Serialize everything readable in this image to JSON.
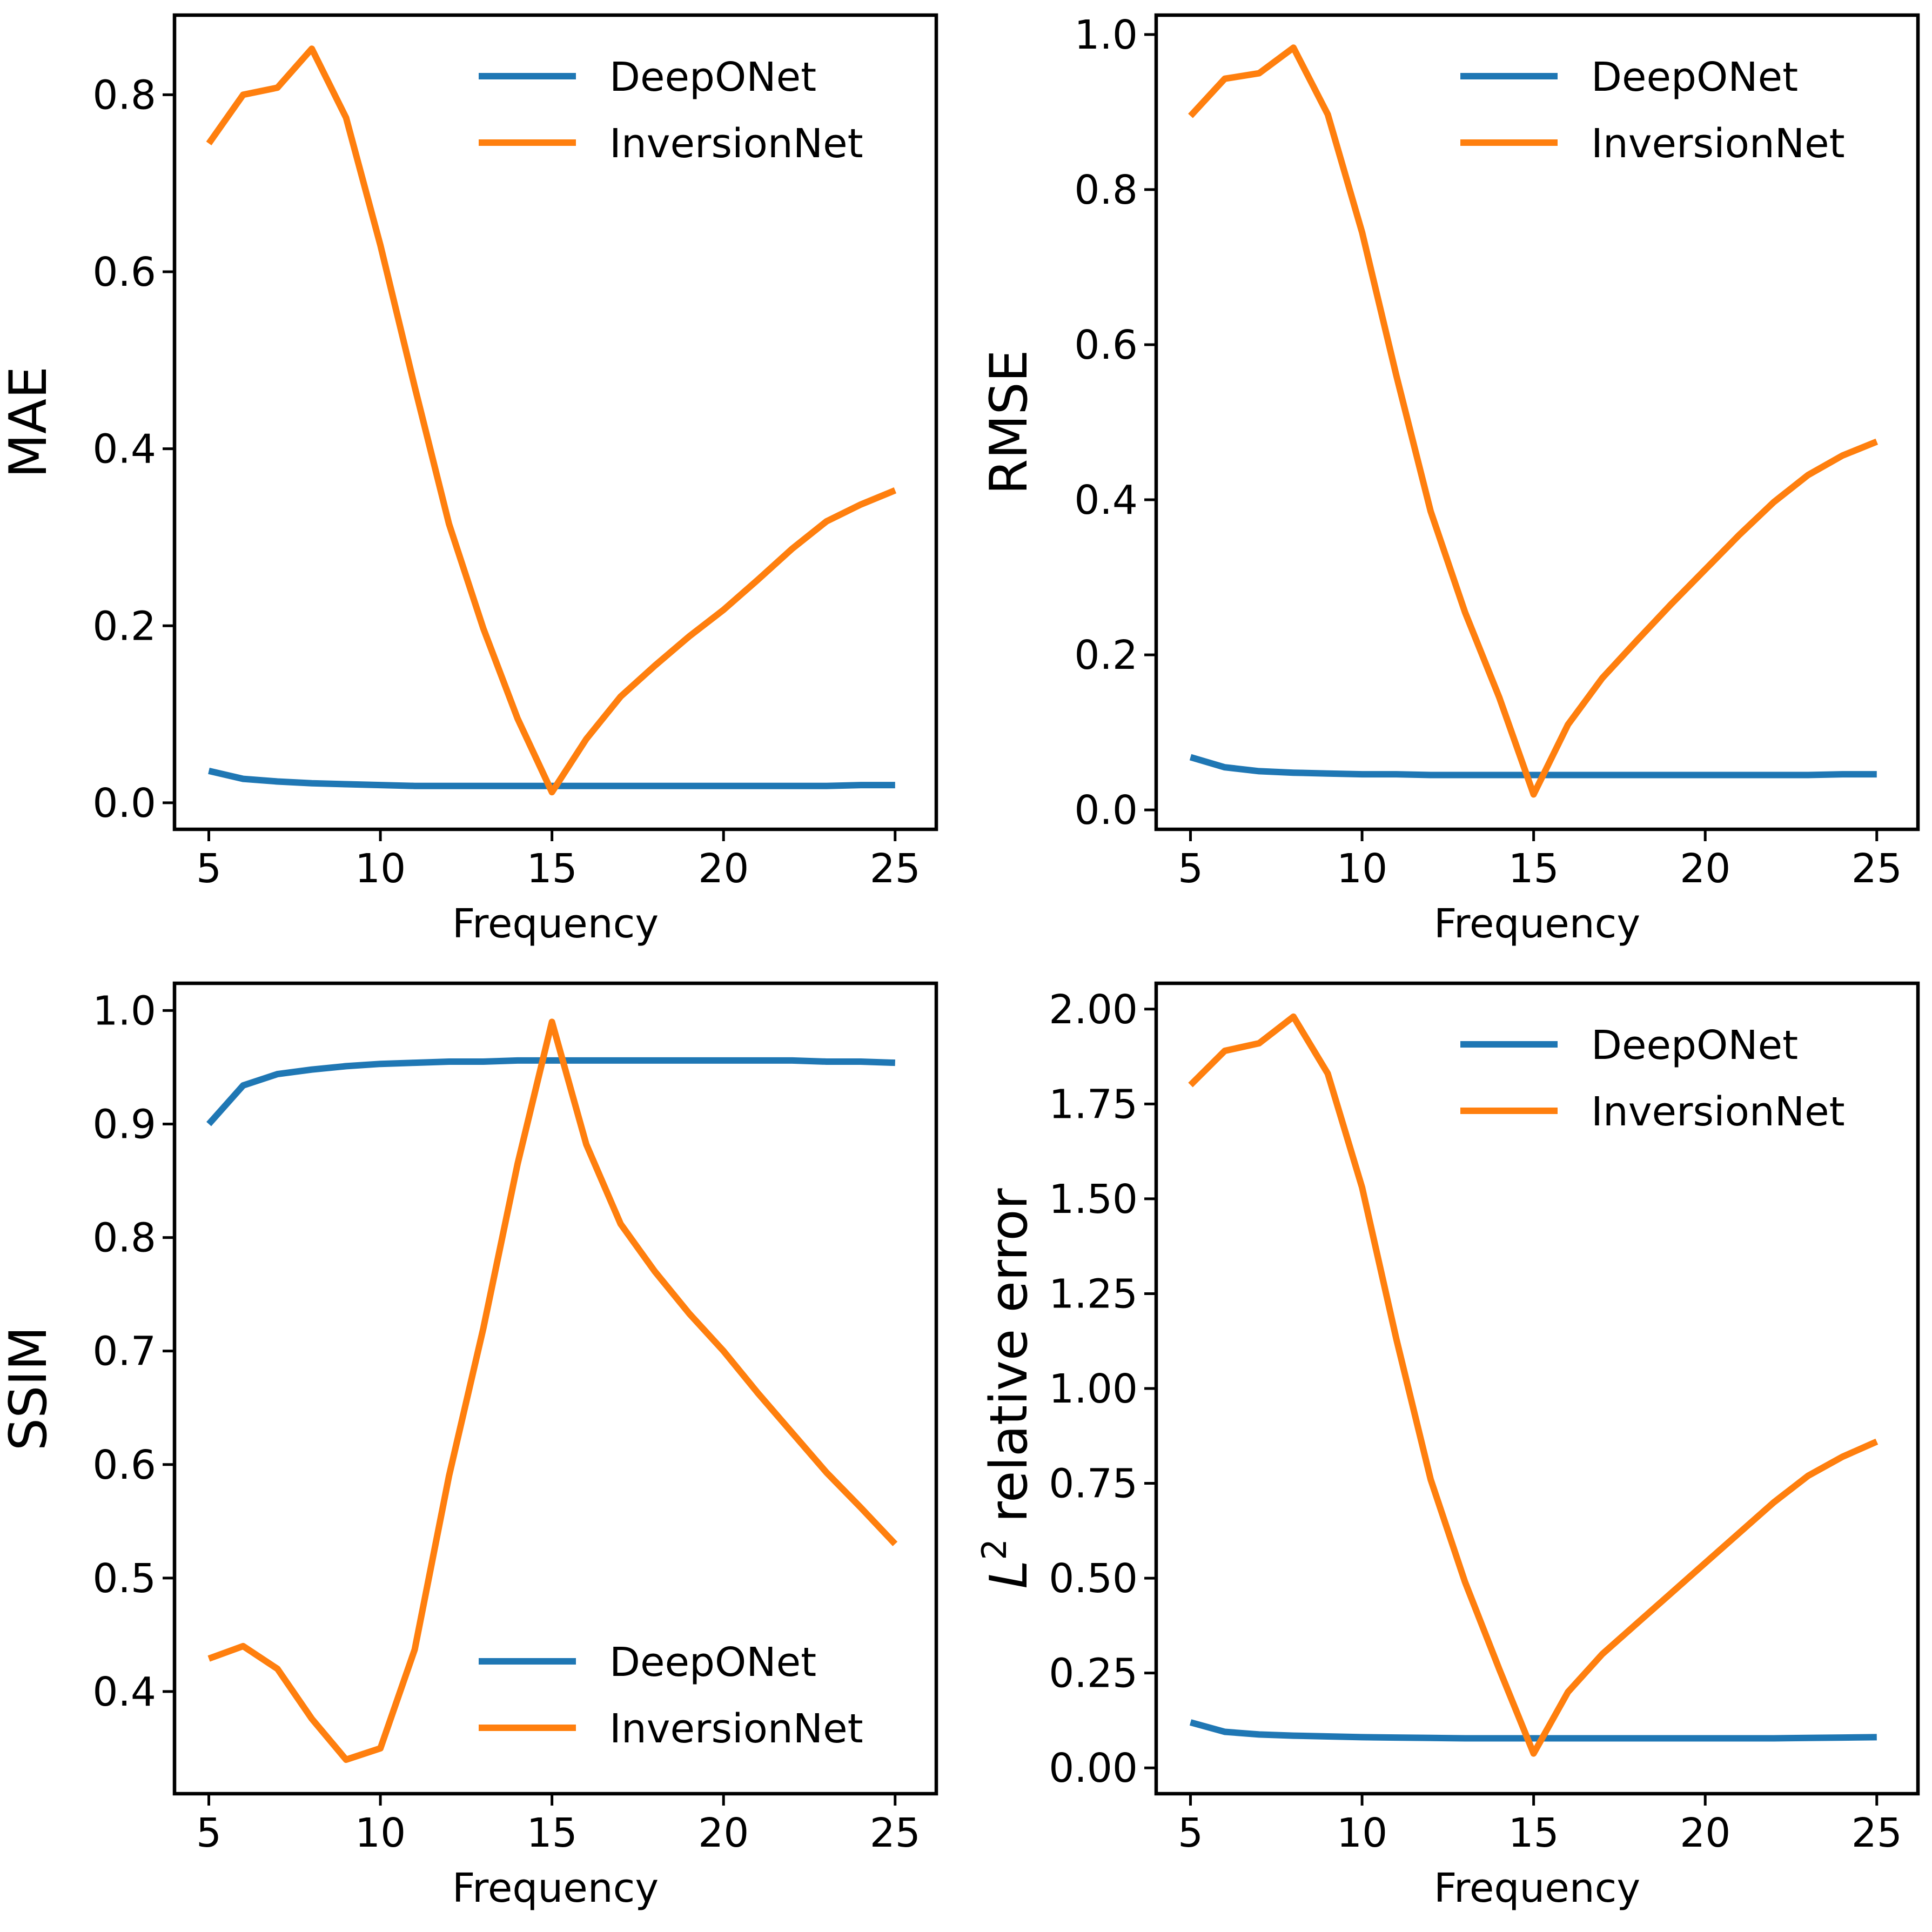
{
  "colors": {
    "deeponet": "#1f77b4",
    "inversionnet": "#ff7f0e"
  },
  "chart_data": [
    {
      "type": "line",
      "id": "mae",
      "xlabel": "Frequency",
      "ylabel": "MAE",
      "xlim": [
        4,
        26.2
      ],
      "ylim": [
        -0.03,
        0.89
      ],
      "xticks": [
        5,
        10,
        15,
        20,
        25
      ],
      "xtick_labels": [
        "5",
        "10",
        "15",
        "20",
        "25"
      ],
      "yticks": [
        0.0,
        0.2,
        0.4,
        0.6,
        0.8
      ],
      "ytick_labels": [
        "0.0",
        "0.2",
        "0.4",
        "0.6",
        "0.8"
      ],
      "legend_position": "upper-right",
      "x": [
        5,
        6,
        7,
        8,
        9,
        10,
        11,
        12,
        13,
        14,
        15,
        16,
        17,
        18,
        19,
        20,
        21,
        22,
        23,
        24,
        25
      ],
      "series": [
        {
          "name": "DeepONet",
          "color_key": "deeponet",
          "values": [
            0.036,
            0.027,
            0.024,
            0.022,
            0.021,
            0.02,
            0.019,
            0.019,
            0.019,
            0.019,
            0.019,
            0.019,
            0.019,
            0.019,
            0.019,
            0.019,
            0.019,
            0.019,
            0.019,
            0.02,
            0.02
          ]
        },
        {
          "name": "InversionNet",
          "color_key": "inversionnet",
          "values": [
            0.745,
            0.8,
            0.808,
            0.852,
            0.774,
            0.63,
            0.47,
            0.315,
            0.197,
            0.095,
            0.012,
            0.072,
            0.12,
            0.155,
            0.188,
            0.218,
            0.252,
            0.287,
            0.318,
            0.337,
            0.353
          ]
        }
      ]
    },
    {
      "type": "line",
      "id": "rmse",
      "xlabel": "Frequency",
      "ylabel": "RMSE",
      "xlim": [
        4,
        26.2
      ],
      "ylim": [
        -0.025,
        1.025
      ],
      "xticks": [
        5,
        10,
        15,
        20,
        25
      ],
      "xtick_labels": [
        "5",
        "10",
        "15",
        "20",
        "25"
      ],
      "yticks": [
        0.0,
        0.2,
        0.4,
        0.6,
        0.8,
        1.0
      ],
      "ytick_labels": [
        "0.0",
        "0.2",
        "0.4",
        "0.6",
        "0.8",
        "1.0"
      ],
      "legend_position": "upper-right",
      "x": [
        5,
        6,
        7,
        8,
        9,
        10,
        11,
        12,
        13,
        14,
        15,
        16,
        17,
        18,
        19,
        20,
        21,
        22,
        23,
        24,
        25
      ],
      "series": [
        {
          "name": "DeepONet",
          "color_key": "deeponet",
          "values": [
            0.068,
            0.055,
            0.05,
            0.048,
            0.047,
            0.046,
            0.046,
            0.045,
            0.045,
            0.045,
            0.045,
            0.045,
            0.045,
            0.045,
            0.045,
            0.045,
            0.045,
            0.045,
            0.045,
            0.046,
            0.046
          ]
        },
        {
          "name": "InversionNet",
          "color_key": "inversionnet",
          "values": [
            0.895,
            0.943,
            0.95,
            0.983,
            0.897,
            0.745,
            0.56,
            0.385,
            0.255,
            0.145,
            0.02,
            0.11,
            0.17,
            0.218,
            0.265,
            0.31,
            0.355,
            0.397,
            0.432,
            0.457,
            0.475
          ]
        }
      ]
    },
    {
      "type": "line",
      "id": "ssim",
      "xlabel": "Frequency",
      "ylabel": "SSIM",
      "xlim": [
        4,
        26.2
      ],
      "ylim": [
        0.31,
        1.024
      ],
      "xticks": [
        5,
        10,
        15,
        20,
        25
      ],
      "xtick_labels": [
        "5",
        "10",
        "15",
        "20",
        "25"
      ],
      "yticks": [
        0.4,
        0.5,
        0.6,
        0.7,
        0.8,
        0.9,
        1.0
      ],
      "ytick_labels": [
        "0.4",
        "0.5",
        "0.6",
        "0.7",
        "0.8",
        "0.9",
        "1.0"
      ],
      "legend_position": "lower-right",
      "x": [
        5,
        6,
        7,
        8,
        9,
        10,
        11,
        12,
        13,
        14,
        15,
        16,
        17,
        18,
        19,
        20,
        21,
        22,
        23,
        24,
        25
      ],
      "series": [
        {
          "name": "DeepONet",
          "color_key": "deeponet",
          "values": [
            0.9,
            0.934,
            0.944,
            0.948,
            0.951,
            0.953,
            0.954,
            0.955,
            0.955,
            0.956,
            0.956,
            0.956,
            0.956,
            0.956,
            0.956,
            0.956,
            0.956,
            0.956,
            0.955,
            0.955,
            0.954
          ]
        },
        {
          "name": "InversionNet",
          "color_key": "inversionnet",
          "values": [
            0.429,
            0.44,
            0.42,
            0.376,
            0.34,
            0.35,
            0.437,
            0.59,
            0.72,
            0.865,
            0.99,
            0.882,
            0.812,
            0.77,
            0.733,
            0.7,
            0.663,
            0.628,
            0.593,
            0.562,
            0.53
          ]
        }
      ]
    },
    {
      "type": "line",
      "id": "l2",
      "xlabel": "Frequency",
      "ylabel": "relative error",
      "ylabel_symbol": "L",
      "ylabel_superscript": "2",
      "xlim": [
        4,
        26.2
      ],
      "ylim": [
        -0.068,
        2.068
      ],
      "xticks": [
        5,
        10,
        15,
        20,
        25
      ],
      "xtick_labels": [
        "5",
        "10",
        "15",
        "20",
        "25"
      ],
      "yticks": [
        0.0,
        0.25,
        0.5,
        0.75,
        1.0,
        1.25,
        1.5,
        1.75,
        2.0
      ],
      "ytick_labels": [
        "0.00",
        "0.25",
        "0.50",
        "0.75",
        "1.00",
        "1.25",
        "1.50",
        "1.75",
        "2.00"
      ],
      "legend_position": "upper-right",
      "x": [
        5,
        6,
        7,
        8,
        9,
        10,
        11,
        12,
        13,
        14,
        15,
        16,
        17,
        18,
        19,
        20,
        21,
        22,
        23,
        24,
        25
      ],
      "series": [
        {
          "name": "DeepONet",
          "color_key": "deeponet",
          "values": [
            0.12,
            0.095,
            0.088,
            0.085,
            0.083,
            0.081,
            0.08,
            0.079,
            0.078,
            0.078,
            0.078,
            0.078,
            0.078,
            0.078,
            0.078,
            0.078,
            0.078,
            0.078,
            0.079,
            0.08,
            0.081
          ]
        },
        {
          "name": "InversionNet",
          "color_key": "inversionnet",
          "values": [
            1.8,
            1.89,
            1.91,
            1.98,
            1.83,
            1.53,
            1.13,
            0.76,
            0.49,
            0.26,
            0.038,
            0.2,
            0.3,
            0.38,
            0.46,
            0.54,
            0.62,
            0.7,
            0.77,
            0.82,
            0.86
          ]
        }
      ]
    }
  ]
}
